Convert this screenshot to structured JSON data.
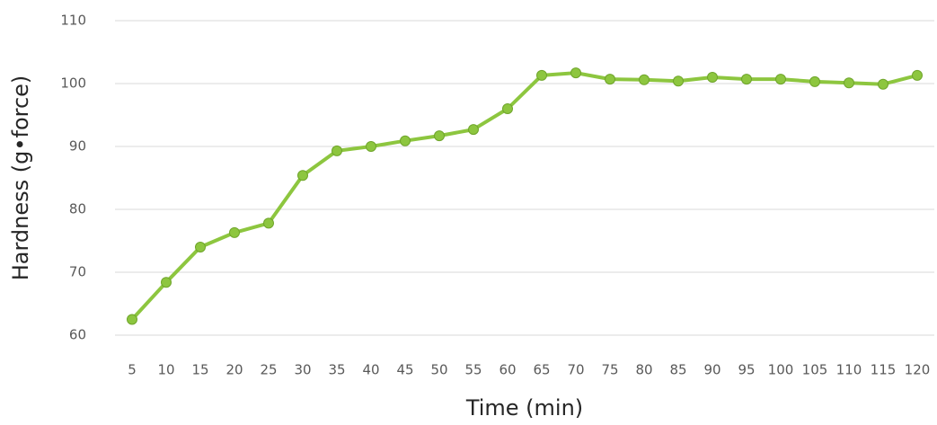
{
  "chart_data": {
    "type": "line",
    "x_label": "Time (min)",
    "y_label": "Hardness (g•force)",
    "categories": [
      "5",
      "10",
      "15",
      "20",
      "25",
      "30",
      "35",
      "40",
      "45",
      "50",
      "55",
      "60",
      "65",
      "70",
      "75",
      "80",
      "85",
      "90",
      "95",
      "100",
      "105",
      "110",
      "115",
      "120"
    ],
    "series": [
      {
        "name": "Hardness",
        "color": "#8dc63f",
        "values": [
          62.5,
          68.4,
          74,
          76.3,
          77.8,
          85.4,
          89.3,
          90,
          90.9,
          91.7,
          92.7,
          96,
          101.3,
          101.7,
          100.7,
          100.6,
          100.4,
          101,
          100.7,
          100.7,
          100.3,
          100.1,
          99.9,
          101.3
        ]
      }
    ],
    "ylim": [
      60,
      110
    ],
    "yticks": [
      60,
      70,
      80,
      90,
      100,
      110
    ],
    "grid": true
  }
}
